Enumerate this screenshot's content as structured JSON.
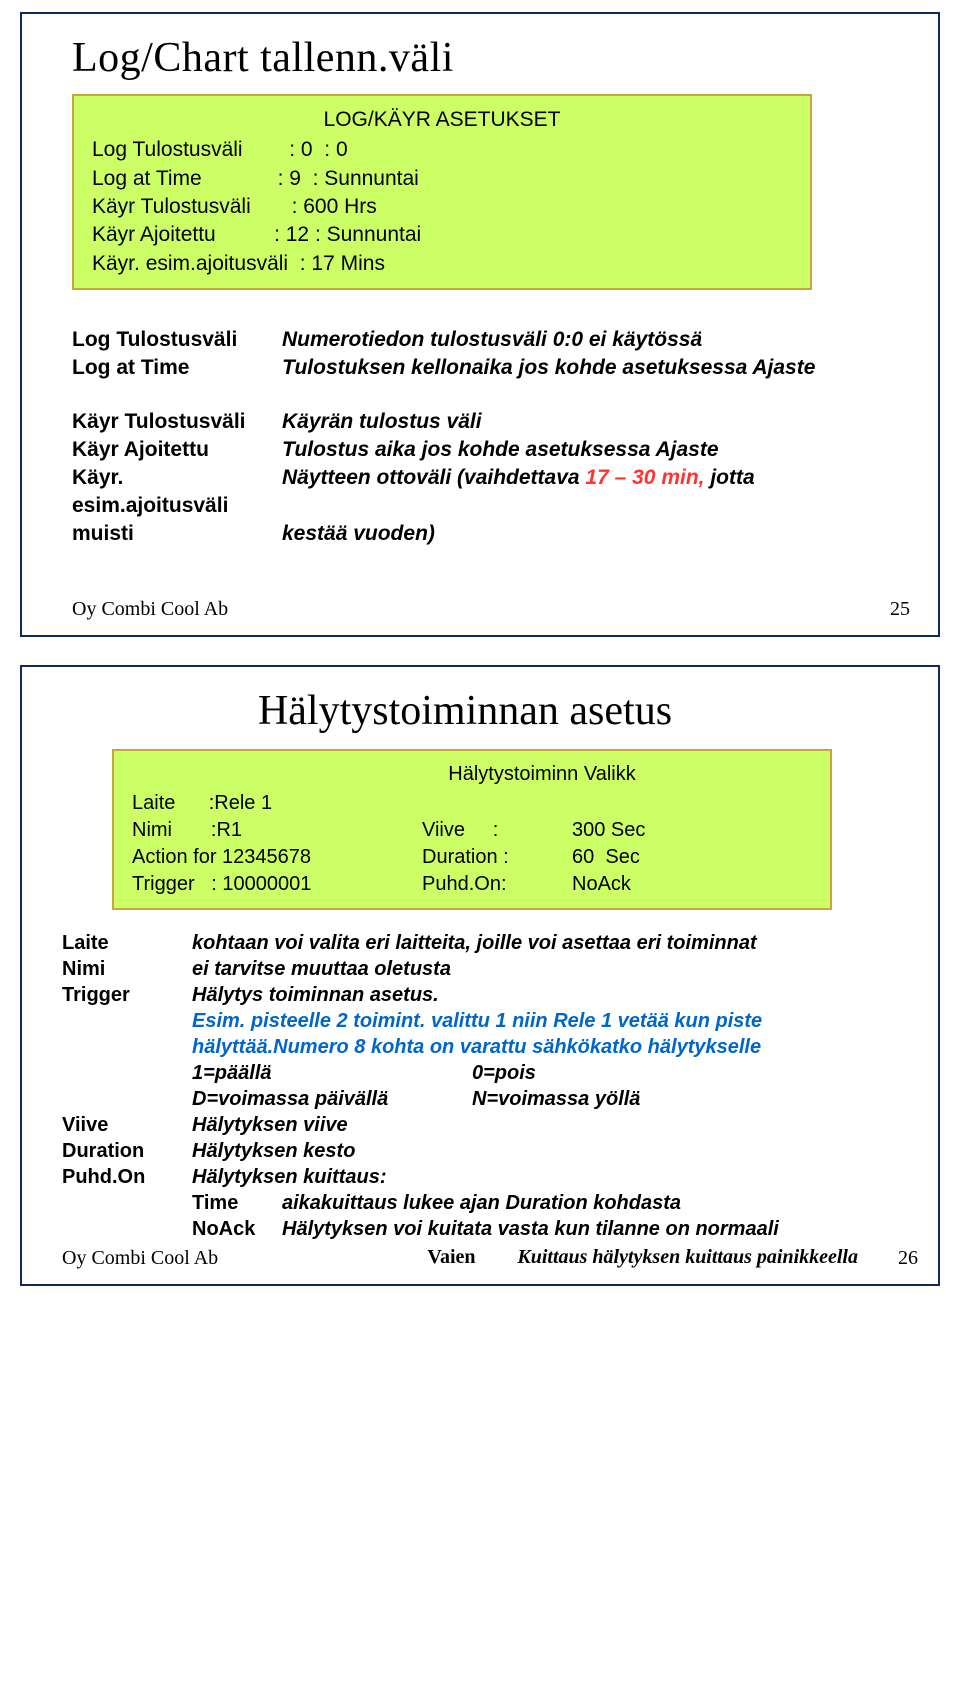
{
  "slide1": {
    "title": "Log/Chart tallenn.väli",
    "box": {
      "header": "LOG/KÄYR ASETUKSET",
      "rows": [
        {
          "label": "Log Tulostusväli",
          "value": ": 0  : 0"
        },
        {
          "label": "Log at Time",
          "value": ": 9  : Sunnuntai"
        },
        {
          "label": "Käyr Tulostusväli",
          "value": ": 600 Hrs"
        },
        {
          "label": "Käyr Ajoitettu",
          "value": ": 12 : Sunnuntai"
        },
        {
          "label": "Käyr. esim.ajoitusväli",
          "value": ": 17 Mins"
        }
      ]
    },
    "defsA": [
      {
        "term": "Log Tulostusväli",
        "val": "Numerotiedon tulostusväli 0:0 ei käytössä"
      },
      {
        "term": "Log at Time",
        "val": "Tulostuksen kellonaika jos kohde asetuksessa Ajaste"
      }
    ],
    "defsB": [
      {
        "term": "Käyr Tulostusväli",
        "val": "Käyrän tulostus väli"
      },
      {
        "term": "Käyr Ajoitettu",
        "val": "Tulostus aika jos kohde asetuksessa Ajaste"
      },
      {
        "term": "Käyr. esim.ajoitusväli",
        "val_pre": "Näytteen ottoväli (vaihdettava ",
        "val_red": "17 – 30 min,",
        "val_post": " jotta"
      },
      {
        "term": "muisti",
        "val": "kestää vuoden)"
      }
    ],
    "footer_company": "Oy Combi Cool Ab",
    "footer_page": "25"
  },
  "slide2": {
    "title": "Hälytystoiminnan asetus",
    "box": {
      "header": "Hälytystoiminn Valikk",
      "rows": [
        {
          "c1": "Laite      :Rele 1",
          "c2": "",
          "c3": ""
        },
        {
          "c1": "Nimi       :R1",
          "c2": "Viive     :",
          "c3": "300 Sec"
        },
        {
          "c1": "Action for 12345678",
          "c2": "Duration :",
          "c3": "60  Sec"
        },
        {
          "c1": "Trigger   : 10000001",
          "c2": "Puhd.On:",
          "c3": "NoAck"
        }
      ]
    },
    "defs": {
      "laite": "kohtaan voi valita eri laitteita, joille voi asettaa eri toiminnat",
      "nimi": "ei tarvitse muuttaa oletusta",
      "trigger_l1": "Hälytys toiminnan asetus.",
      "trigger_blue1": "Esim. pisteelle 2 toimint. valittu 1 niin Rele 1 vetää kun piste",
      "trigger_blue2": "hälyttää.Numero 8 kohta on varattu sähkökatko hälytykselle",
      "pair1a": "1=päällä",
      "pair1b": "0=pois",
      "pair2a": "D=voimassa päivällä",
      "pair2b": "N=voimassa yöllä",
      "viive": "Hälytyksen viive",
      "duration": "Hälytyksen kesto",
      "puhdon": "Hälytyksen kuittaus:",
      "sub_time": "aikakuittaus lukee ajan Duration kohdasta",
      "sub_noack": "Hälytyksen voi kuitata vasta kun tilanne on normaali",
      "sub_vaien": "Kuittaus hälytyksen kuittaus painikkeella"
    },
    "footer_company": "Oy Combi Cool Ab",
    "footer_page": "26"
  },
  "colors": {
    "border": "#0b2b5a",
    "box_bg": "#ccff66",
    "box_border": "#c8a53f",
    "red": "#ff3333",
    "blue": "#0066cc"
  }
}
